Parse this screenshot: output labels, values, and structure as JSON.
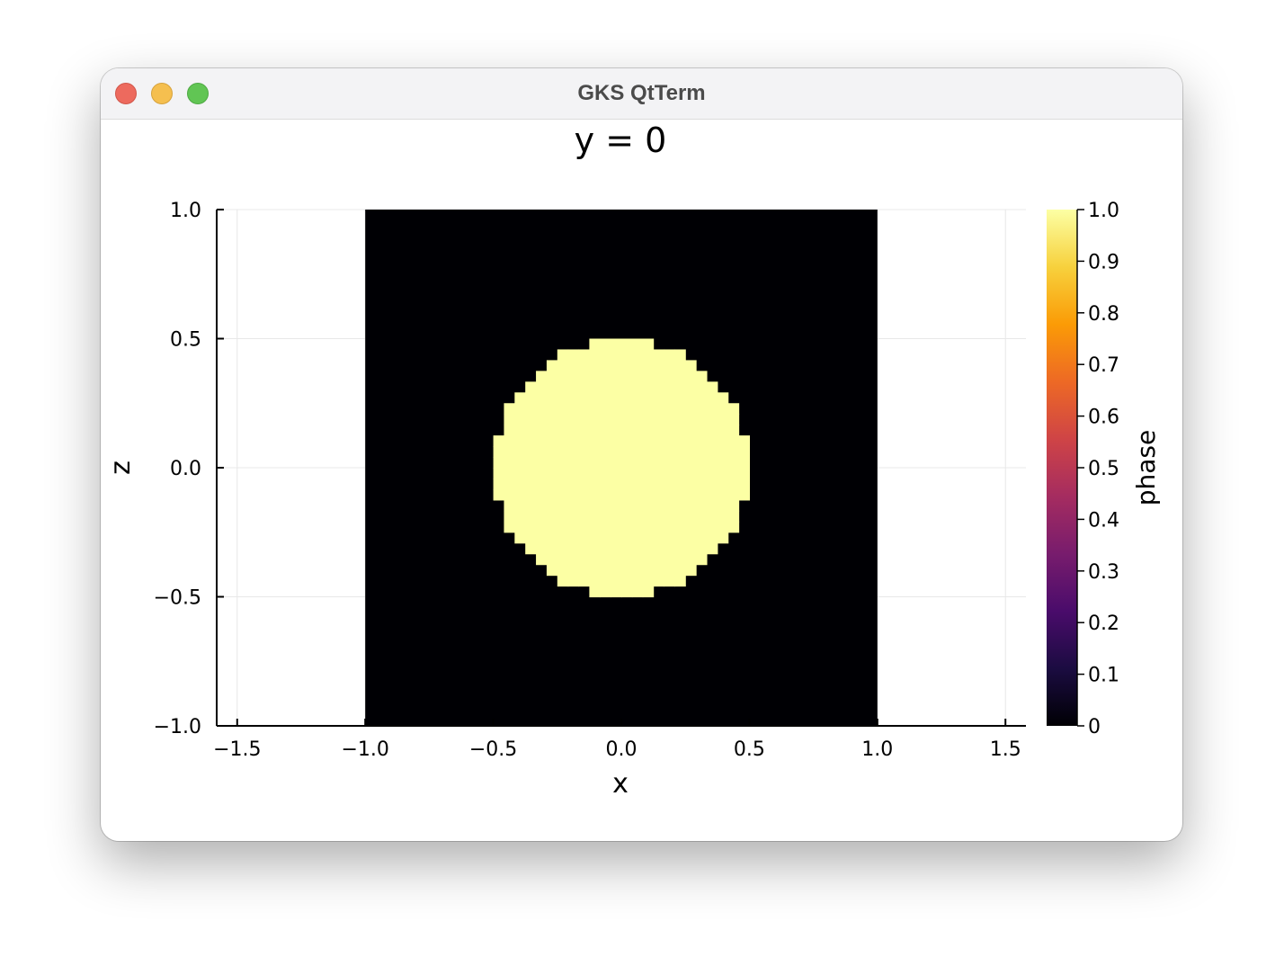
{
  "window": {
    "title": "GKS QtTerm"
  },
  "chart_data": {
    "type": "heatmap",
    "title": "y = 0",
    "xlabel": "x",
    "ylabel": "z",
    "xlim": [
      -1.58,
      1.58
    ],
    "ylim": [
      -1.0,
      1.0
    ],
    "x_ticks": [
      -1.5,
      -1.0,
      -0.5,
      0.0,
      0.5,
      1.0,
      1.5
    ],
    "x_tick_labels": [
      "−1.5",
      "−1.0",
      "−0.5",
      "0.0",
      "0.5",
      "1.0",
      "1.5"
    ],
    "y_ticks": [
      1.0,
      0.5,
      0.0,
      -0.5,
      -1.0
    ],
    "y_tick_labels": [
      "1.0",
      "0.5",
      "0.0",
      "−0.5",
      "−1.0"
    ],
    "grid": true,
    "heatmap_extent": {
      "x": [
        -1.0,
        1.0
      ],
      "z": [
        -1.0,
        1.0
      ]
    },
    "grid_size": 48,
    "region": {
      "shape": "circle",
      "center": [
        0.0,
        0.0
      ],
      "radius": 0.5,
      "inside_value": 1.0,
      "outside_value": 0.0
    },
    "colorbar": {
      "label": "phase",
      "colormap": "inferno",
      "range": [
        0,
        1
      ],
      "ticks": [
        1.0,
        0.9,
        0.8,
        0.7,
        0.6,
        0.5,
        0.4,
        0.3,
        0.2,
        0.1,
        0
      ],
      "tick_labels": [
        "1.0",
        "0.9",
        "0.8",
        "0.7",
        "0.6",
        "0.5",
        "0.4",
        "0.3",
        "0.2",
        "0.1",
        "0"
      ],
      "colors": [
        "#000004",
        "#1b0c41",
        "#4a0c6b",
        "#781c6d",
        "#a52c60",
        "#cf4446",
        "#ed6925",
        "#fb9b06",
        "#f7d13d",
        "#fcffa4"
      ]
    },
    "colors": {
      "low": "#000004",
      "high": "#fcffa4"
    }
  }
}
